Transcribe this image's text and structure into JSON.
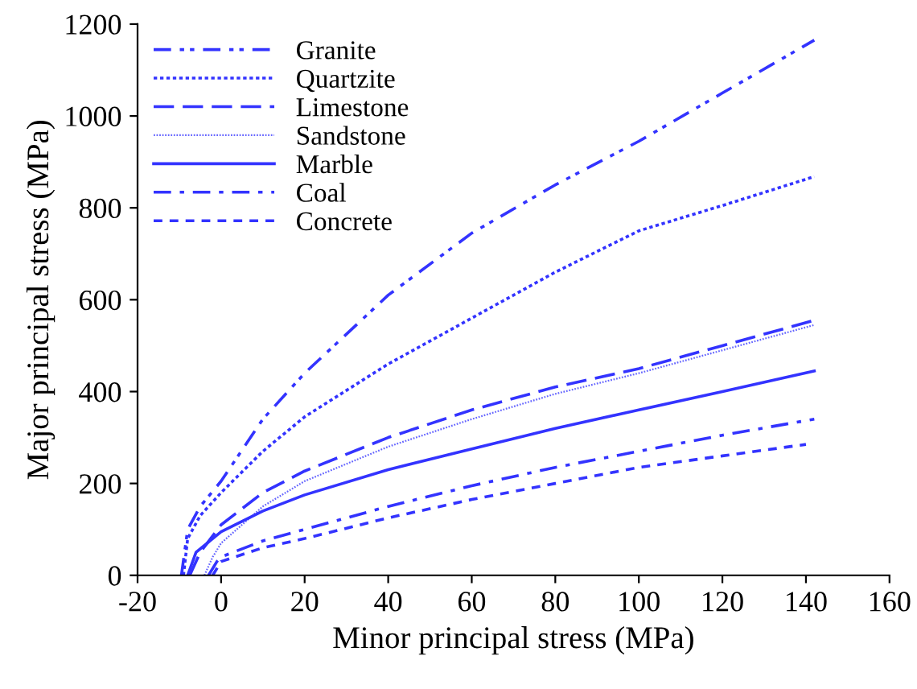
{
  "chart_data": {
    "type": "line",
    "xlabel": "Minor principal stress (MPa)",
    "ylabel": "Major principal stress (MPa)",
    "xlim": [
      -20,
      160
    ],
    "xticks": [
      -20,
      0,
      20,
      40,
      60,
      80,
      100,
      120,
      140,
      160
    ],
    "ylim": [
      0,
      1200
    ],
    "yticks": [
      0,
      200,
      400,
      600,
      800,
      1000,
      1200
    ],
    "grid": false,
    "legend": "top left",
    "marker": "none",
    "series": [
      {
        "name": "Granite",
        "color": "#3333ff",
        "line_style": "dashdotdot",
        "x": [
          -9.5,
          -8,
          -5,
          0,
          10,
          20,
          40,
          60,
          80,
          100,
          120,
          142
        ],
        "values": [
          0,
          100,
          150,
          205,
          340,
          440,
          610,
          745,
          850,
          945,
          1050,
          1165
        ]
      },
      {
        "name": "Quartzite",
        "color": "#3333ff",
        "line_style": "dotted",
        "x": [
          -9,
          -8,
          -5,
          0,
          10,
          20,
          40,
          60,
          80,
          100,
          120,
          142
        ],
        "values": [
          0,
          80,
          130,
          180,
          270,
          345,
          460,
          560,
          660,
          750,
          805,
          868
        ]
      },
      {
        "name": "Limestone",
        "color": "#3333ff",
        "line_style": "dashed",
        "x": [
          -7.5,
          -5,
          0,
          10,
          20,
          40,
          60,
          80,
          100,
          120,
          142
        ],
        "values": [
          0,
          50,
          110,
          180,
          227,
          300,
          360,
          410,
          450,
          500,
          555
        ]
      },
      {
        "name": "Sandstone",
        "color": "#6666ff",
        "line_style": "finedotted",
        "x": [
          -4,
          -2,
          0,
          10,
          20,
          40,
          60,
          80,
          100,
          120,
          142
        ],
        "values": [
          0,
          40,
          70,
          150,
          205,
          280,
          340,
          395,
          440,
          490,
          545
        ]
      },
      {
        "name": "Marble",
        "color": "#3333ff",
        "line_style": "solid",
        "x": [
          -8,
          -6,
          0,
          10,
          20,
          40,
          60,
          80,
          100,
          120,
          142
        ],
        "values": [
          0,
          50,
          95,
          140,
          175,
          230,
          275,
          320,
          360,
          400,
          445
        ]
      },
      {
        "name": "Coal",
        "color": "#3333ff",
        "line_style": "dashdot",
        "x": [
          -3,
          -1,
          0,
          10,
          20,
          40,
          60,
          80,
          100,
          120,
          142
        ],
        "values": [
          0,
          30,
          40,
          75,
          100,
          150,
          195,
          235,
          270,
          305,
          340
        ]
      },
      {
        "name": "Concrete",
        "color": "#3333ff",
        "line_style": "shortdashed",
        "x": [
          -2,
          0,
          10,
          20,
          40,
          60,
          80,
          100,
          120,
          140
        ],
        "values": [
          0,
          30,
          60,
          80,
          125,
          165,
          200,
          235,
          260,
          285
        ]
      }
    ]
  }
}
